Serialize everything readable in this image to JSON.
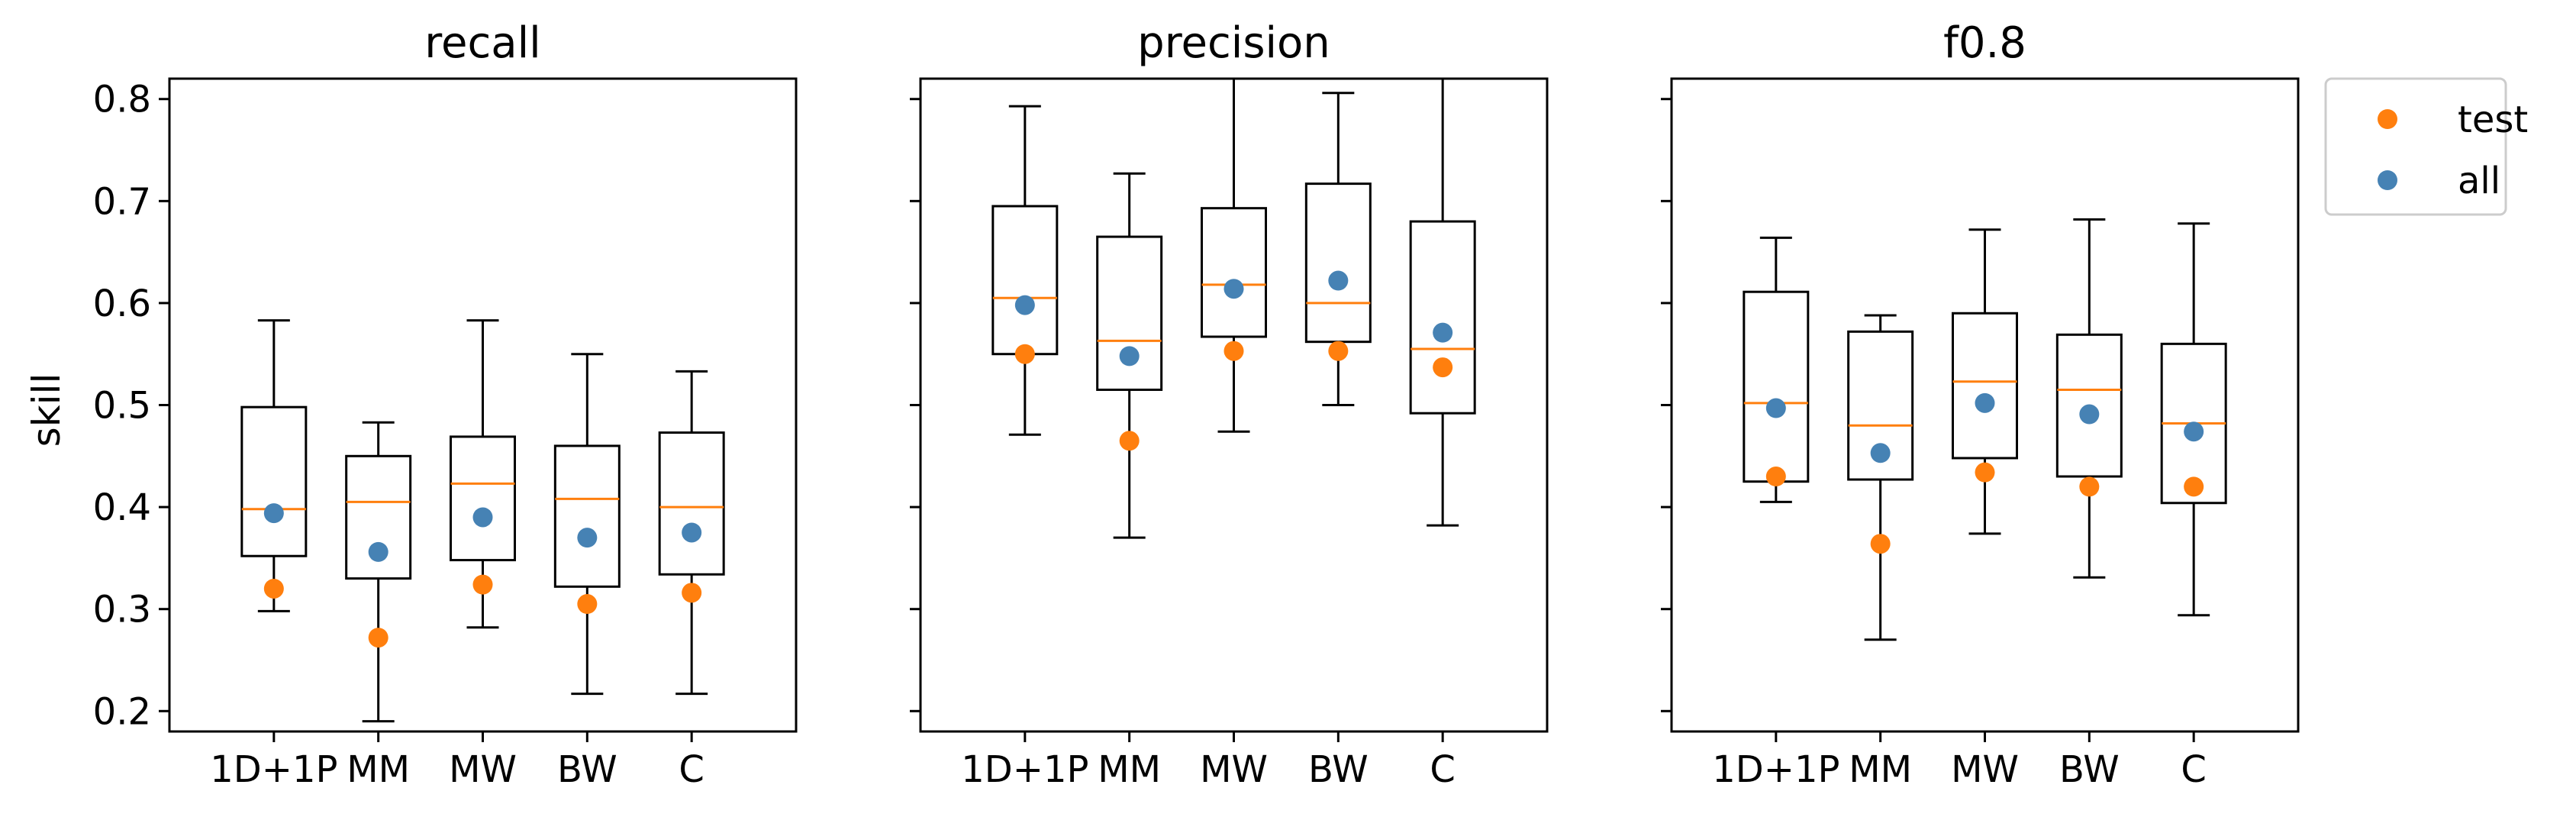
{
  "chart_data": {
    "type": "box",
    "ylabel": "skill",
    "ylim": [
      0.18,
      0.82
    ],
    "yticks": [
      0.2,
      0.3,
      0.4,
      0.5,
      0.6,
      0.7,
      0.8
    ],
    "categories": [
      "1D+1P",
      "MM",
      "MW",
      "BW",
      "C"
    ],
    "legend": {
      "placement": "outside-top-right",
      "entries": [
        {
          "name": "test",
          "color": "#ff7f0e"
        },
        {
          "name": "all",
          "color": "#4682b4"
        }
      ]
    },
    "colors": {
      "box": "#000000",
      "median": "#ff7f0e",
      "test": "#ff7f0e",
      "all": "#4682b4"
    },
    "panels": [
      {
        "title": "recall",
        "boxes": [
          {
            "category": "1D+1P",
            "whislo": 0.298,
            "q1": 0.352,
            "med": 0.398,
            "q3": 0.498,
            "whishi": 0.583
          },
          {
            "category": "MM",
            "whislo": 0.19,
            "q1": 0.33,
            "med": 0.405,
            "q3": 0.45,
            "whishi": 0.483
          },
          {
            "category": "MW",
            "whislo": 0.282,
            "q1": 0.348,
            "med": 0.423,
            "q3": 0.469,
            "whishi": 0.583
          },
          {
            "category": "BW",
            "whislo": 0.217,
            "q1": 0.322,
            "med": 0.408,
            "q3": 0.46,
            "whishi": 0.55
          },
          {
            "category": "C",
            "whislo": 0.217,
            "q1": 0.334,
            "med": 0.4,
            "q3": 0.473,
            "whishi": 0.533
          }
        ],
        "test": [
          0.32,
          0.272,
          0.324,
          0.305,
          0.316
        ],
        "all": [
          0.394,
          0.356,
          0.39,
          0.37,
          0.375
        ]
      },
      {
        "title": "precision",
        "boxes": [
          {
            "category": "1D+1P",
            "whislo": 0.471,
            "q1": 0.55,
            "med": 0.605,
            "q3": 0.695,
            "whishi": 0.793
          },
          {
            "category": "MM",
            "whislo": 0.37,
            "q1": 0.515,
            "med": 0.563,
            "q3": 0.665,
            "whishi": 0.727
          },
          {
            "category": "MW",
            "whislo": 0.474,
            "q1": 0.567,
            "med": 0.618,
            "q3": 0.693,
            "whishi": 0.84
          },
          {
            "category": "BW",
            "whislo": 0.5,
            "q1": 0.562,
            "med": 0.6,
            "q3": 0.717,
            "whishi": 0.806
          },
          {
            "category": "C",
            "whislo": 0.382,
            "q1": 0.492,
            "med": 0.555,
            "q3": 0.68,
            "whishi": 0.84
          }
        ],
        "test": [
          0.55,
          0.465,
          0.553,
          0.553,
          0.537
        ],
        "all": [
          0.598,
          0.548,
          0.614,
          0.622,
          0.571
        ]
      },
      {
        "title": "f0.8",
        "boxes": [
          {
            "category": "1D+1P",
            "whislo": 0.405,
            "q1": 0.425,
            "med": 0.502,
            "q3": 0.611,
            "whishi": 0.664
          },
          {
            "category": "MM",
            "whislo": 0.27,
            "q1": 0.427,
            "med": 0.48,
            "q3": 0.572,
            "whishi": 0.588
          },
          {
            "category": "MW",
            "whislo": 0.374,
            "q1": 0.448,
            "med": 0.523,
            "q3": 0.59,
            "whishi": 0.672
          },
          {
            "category": "BW",
            "whislo": 0.331,
            "q1": 0.43,
            "med": 0.515,
            "q3": 0.569,
            "whishi": 0.682
          },
          {
            "category": "C",
            "whislo": 0.294,
            "q1": 0.404,
            "med": 0.482,
            "q3": 0.56,
            "whishi": 0.678
          }
        ],
        "test": [
          0.43,
          0.364,
          0.434,
          0.42,
          0.42
        ],
        "all": [
          0.497,
          0.453,
          0.502,
          0.491,
          0.474
        ]
      }
    ]
  }
}
